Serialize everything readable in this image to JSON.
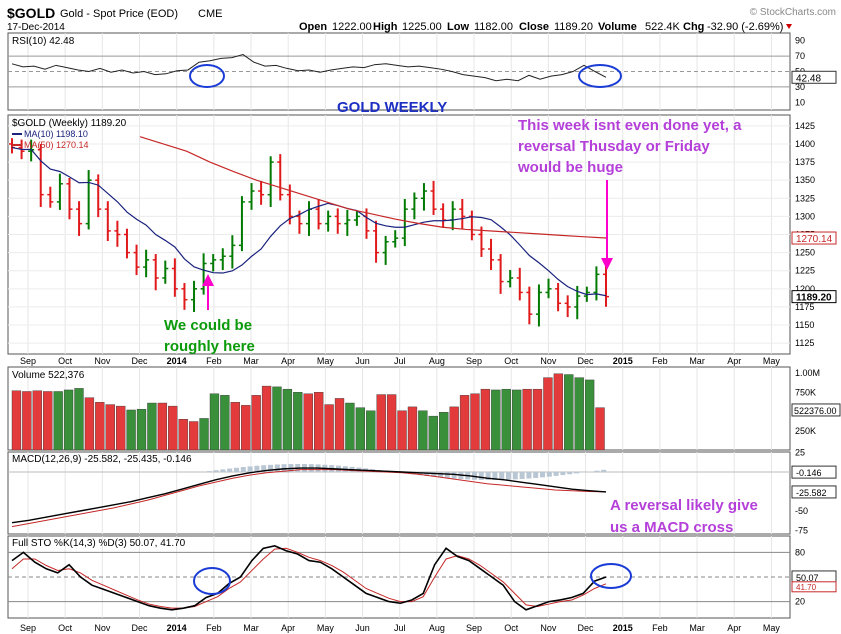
{
  "header": {
    "symbol": "$GOLD",
    "name": "Gold - Spot Price (EOD)",
    "exchange": "CME",
    "date": "17-Dec-2014",
    "brand": "© StockCharts.com",
    "open_label": "Open",
    "open": "1222.00",
    "high_label": "High",
    "high": "1225.00",
    "low_label": "Low",
    "low": "1182.00",
    "close_label": "Close",
    "close": "1189.20",
    "volume_label": "Volume",
    "volume": "522.4K",
    "chg_label": "Chg",
    "chg": "-32.90 (-2.69%)"
  },
  "colors": {
    "up": "#007a00",
    "down": "#e0191b",
    "ma10": "#1a237e",
    "ma50": "#c62828",
    "annotation_purple": "#b43fd9",
    "annotation_green": "#0a9a0a",
    "title_blue": "#1e2fc4",
    "circle_blue": "#1a3bd6",
    "arrow_magenta": "#ff00cc",
    "volume_up": "#3a8f3a",
    "volume_down": "#e33b3b",
    "macd_hist": "#b9c6d3"
  },
  "x_axis": {
    "months": [
      "Sep",
      "Oct",
      "Nov",
      "Dec",
      "2014",
      "Feb",
      "Mar",
      "Apr",
      "May",
      "Jun",
      "Jul",
      "Aug",
      "Sep",
      "Oct",
      "Nov",
      "Dec",
      "2015",
      "Feb",
      "Mar",
      "Apr",
      "May"
    ]
  },
  "annotations": {
    "title": "GOLD WEEKLY",
    "note_top": [
      "This week isnt even done yet, a",
      "reversal Thusday or Friday",
      "would be huge"
    ],
    "note_left": [
      "We could be",
      "roughly here"
    ],
    "note_macd": [
      "A reversal likely give",
      "us a MACD cross"
    ]
  },
  "chart_data": [
    {
      "type": "line",
      "panel": "rsi",
      "legend": "RSI(10) 42.48",
      "ylim": [
        0,
        100
      ],
      "ticks": [
        "90",
        "70",
        "50",
        "30",
        "10"
      ],
      "last_label": "42.48",
      "values": [
        60,
        56,
        57,
        53,
        58,
        55,
        52,
        50,
        54,
        49,
        52,
        48,
        50,
        46,
        47,
        51,
        52,
        62,
        64,
        67,
        68,
        72,
        62,
        57,
        58,
        54,
        51,
        52,
        49,
        52,
        54,
        56,
        55,
        59,
        60,
        58,
        56,
        57,
        55,
        53,
        50,
        46,
        44,
        42,
        38,
        40,
        38,
        45,
        40,
        44,
        46,
        50,
        58,
        50,
        42.48
      ]
    },
    {
      "type": "ohlc",
      "panel": "price",
      "legend": "$GOLD (Weekly) 1189.20",
      "ma10_legend": "MA(10) 1198.10",
      "ma50_legend": "MA(50) 1270.14",
      "ylim": [
        1110,
        1440
      ],
      "ticks": [
        "1425",
        "1400",
        "1375",
        "1350",
        "1325",
        "1300",
        "1275",
        "1250",
        "1225",
        "1200",
        "1175",
        "1150",
        "1125"
      ],
      "last_ma50": "1270.14",
      "last_close": "1189.20",
      "closes": [
        1395,
        1390,
        1392,
        1330,
        1320,
        1345,
        1310,
        1290,
        1350,
        1310,
        1280,
        1275,
        1250,
        1230,
        1240,
        1215,
        1228,
        1200,
        1185,
        1200,
        1235,
        1240,
        1245,
        1260,
        1320,
        1335,
        1330,
        1375,
        1330,
        1300,
        1290,
        1310,
        1290,
        1300,
        1290,
        1295,
        1300,
        1280,
        1250,
        1265,
        1270,
        1310,
        1325,
        1335,
        1310,
        1295,
        1310,
        1300,
        1275,
        1255,
        1240,
        1210,
        1215,
        1195,
        1165,
        1195,
        1200,
        1180,
        1175,
        1190,
        1195,
        1220,
        1189.2
      ],
      "ma50": [
        1410,
        1400,
        1390,
        1375,
        1362,
        1350,
        1340,
        1330,
        1320,
        1310,
        1303,
        1296,
        1290,
        1285,
        1282,
        1280,
        1278,
        1276,
        1274,
        1272,
        1270.14
      ]
    },
    {
      "type": "bar",
      "panel": "volume",
      "legend": "Volume 522,376",
      "ticks": [
        "1.00M",
        "750K",
        "250K"
      ],
      "last_label": "522376.00",
      "values": [
        0.77,
        0.76,
        0.77,
        0.76,
        0.76,
        0.78,
        0.8,
        0.68,
        0.62,
        0.59,
        0.57,
        0.52,
        0.53,
        0.61,
        0.61,
        0.57,
        0.4,
        0.37,
        0.41,
        0.73,
        0.71,
        0.62,
        0.58,
        0.71,
        0.83,
        0.82,
        0.79,
        0.75,
        0.73,
        0.75,
        0.59,
        0.67,
        0.61,
        0.55,
        0.51,
        0.72,
        0.72,
        0.51,
        0.56,
        0.51,
        0.44,
        0.49,
        0.56,
        0.71,
        0.73,
        0.79,
        0.78,
        0.79,
        0.78,
        0.79,
        0.79,
        0.94,
        0.99,
        0.98,
        0.94,
        0.91,
        0.55
      ]
    },
    {
      "type": "line",
      "panel": "macd",
      "legend": "MACD(12,26,9) -25.582, -25.435, -0.146",
      "ticks": [
        "25",
        "0",
        "-25",
        "-50",
        "-75"
      ],
      "last_labels": [
        "-0.146",
        "-25.582"
      ],
      "macd": [
        -65,
        -62,
        -58,
        -54,
        -50,
        -46,
        -42,
        -38,
        -33,
        -28,
        -22,
        -16,
        -10,
        -5,
        -1,
        2,
        4,
        5,
        5,
        4,
        3,
        2,
        1,
        0,
        -1,
        -2,
        -3,
        -5,
        -8,
        -10,
        -13,
        -16,
        -19,
        -22,
        -24,
        -25.582
      ],
      "signal": [
        -70,
        -66,
        -62,
        -58,
        -54,
        -50,
        -46,
        -41,
        -36,
        -30,
        -24,
        -18,
        -13,
        -8,
        -4,
        -1,
        1,
        3,
        3,
        3,
        2,
        1,
        0,
        -1,
        -3,
        -6,
        -9,
        -12,
        -15,
        -17,
        -19,
        -21,
        -23,
        -24,
        -25,
        -25.435
      ]
    },
    {
      "type": "line",
      "panel": "sto",
      "legend": "Full STO %K(14,3) %D(3) 50.07, 41.70",
      "ylim": [
        0,
        100
      ],
      "ticks": [
        "80",
        "50",
        "20"
      ],
      "last_labels": [
        "50.07",
        "41.70"
      ],
      "k": [
        70,
        80,
        68,
        60,
        55,
        65,
        50,
        40,
        35,
        30,
        25,
        20,
        15,
        12,
        10,
        12,
        15,
        25,
        30,
        42,
        50,
        70,
        85,
        88,
        82,
        78,
        70,
        68,
        60,
        50,
        40,
        30,
        25,
        20,
        18,
        22,
        30,
        65,
        85,
        75,
        70,
        60,
        50,
        40,
        20,
        10,
        15,
        20,
        22,
        25,
        30,
        45,
        50.07
      ],
      "d": [
        60,
        72,
        72,
        64,
        58,
        60,
        55,
        46,
        40,
        34,
        28,
        22,
        17,
        14,
        12,
        12,
        14,
        20,
        26,
        36,
        44,
        58,
        72,
        84,
        85,
        80,
        74,
        70,
        64,
        56,
        46,
        36,
        30,
        24,
        20,
        20,
        26,
        50,
        72,
        76,
        72,
        64,
        54,
        44,
        30,
        16,
        14,
        17,
        20,
        22,
        28,
        36,
        41.7
      ]
    }
  ]
}
